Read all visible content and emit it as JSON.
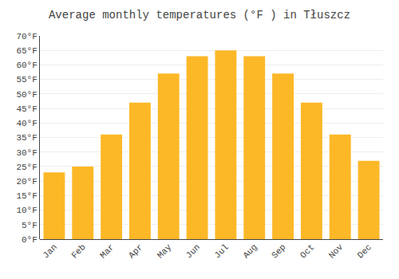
{
  "chart_data": {
    "type": "bar",
    "title": "Average monthly temperatures (°F ) in Tłuszcz",
    "categories": [
      "Jan",
      "Feb",
      "Mar",
      "Apr",
      "May",
      "Jun",
      "Jul",
      "Aug",
      "Sep",
      "Oct",
      "Nov",
      "Dec"
    ],
    "values": [
      23,
      25,
      36,
      47,
      57,
      63,
      65,
      63,
      57,
      47,
      36,
      27
    ],
    "color": "#FDB827",
    "ylim": [
      0,
      70
    ],
    "yticks": [
      {
        "value": 0,
        "label": "0°F"
      },
      {
        "value": 5,
        "label": "5°F"
      },
      {
        "value": 10,
        "label": "10°F"
      },
      {
        "value": 15,
        "label": "15°F"
      },
      {
        "value": 20,
        "label": "20°F"
      },
      {
        "value": 25,
        "label": "25°F"
      },
      {
        "value": 30,
        "label": "30°F"
      },
      {
        "value": 35,
        "label": "35°F"
      },
      {
        "value": 40,
        "label": "40°F"
      },
      {
        "value": 45,
        "label": "45°F"
      },
      {
        "value": 50,
        "label": "50°F"
      },
      {
        "value": 55,
        "label": "55°F"
      },
      {
        "value": 60,
        "label": "60°F"
      },
      {
        "value": 65,
        "label": "65°F"
      },
      {
        "value": 70,
        "label": "70°F"
      }
    ],
    "grid": true
  }
}
